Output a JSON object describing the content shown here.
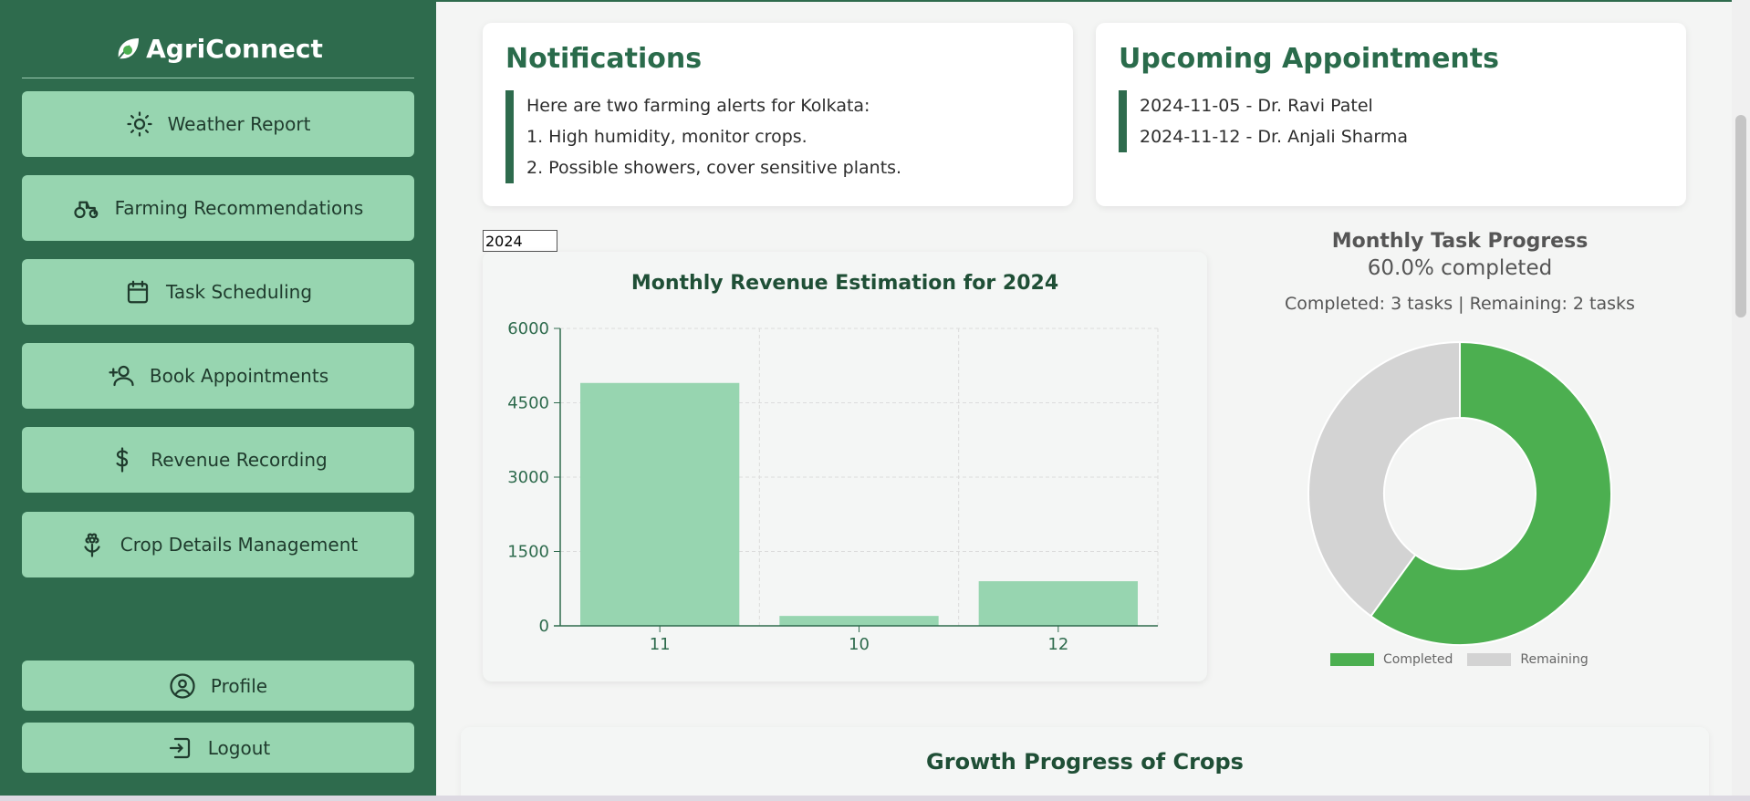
{
  "sidebar": {
    "brand": "AgriConnect",
    "items": [
      {
        "label": "Weather Report",
        "icon": "sun-icon"
      },
      {
        "label": "Farming Recommendations",
        "icon": "tractor-icon"
      },
      {
        "label": "Task Scheduling",
        "icon": "calendar-icon"
      },
      {
        "label": "Book Appointments",
        "icon": "user-plus-icon"
      },
      {
        "label": "Revenue Recording",
        "icon": "dollar-icon"
      },
      {
        "label": "Crop Details Management",
        "icon": "flower-icon"
      }
    ],
    "profile_label": "Profile",
    "logout_label": "Logout"
  },
  "notifications": {
    "title": "Notifications",
    "lines": [
      "Here are two farming alerts for Kolkata:",
      "1. High humidity, monitor crops.",
      "2. Possible showers, cover sensitive plants."
    ]
  },
  "appointments": {
    "title": "Upcoming Appointments",
    "lines": [
      "2024-11-05 - Dr. Ravi Patel",
      "2024-11-12 - Dr. Anjali Sharma"
    ]
  },
  "year_input": {
    "value": "2024"
  },
  "task_progress": {
    "title": "Monthly Task Progress",
    "percent_text": "60.0% completed",
    "counts_text": "Completed: 3 tasks | Remaining: 2 tasks",
    "completed": 3,
    "remaining": 2,
    "legend_completed": "Completed",
    "legend_remaining": "Remaining"
  },
  "growth": {
    "title": "Growth Progress of Crops"
  },
  "colors": {
    "sidebar_bg": "#2e6b4d",
    "button_bg": "#97d5b0",
    "completed": "#4caf50",
    "remaining": "#d3d3d3",
    "bar": "#97d5b0"
  },
  "chart_data": [
    {
      "type": "bar",
      "title": "Monthly Revenue Estimation for 2024",
      "categories": [
        "11",
        "10",
        "12"
      ],
      "values": [
        4900,
        200,
        900
      ],
      "ylim": [
        0,
        6000
      ],
      "yticks": [
        "0",
        "1500",
        "3000",
        "4500",
        "6000"
      ],
      "grid": true,
      "xlabel": "",
      "ylabel": ""
    },
    {
      "type": "pie",
      "title": "Monthly Task Progress",
      "categories": [
        "Completed",
        "Remaining"
      ],
      "values": [
        3,
        2
      ]
    }
  ]
}
